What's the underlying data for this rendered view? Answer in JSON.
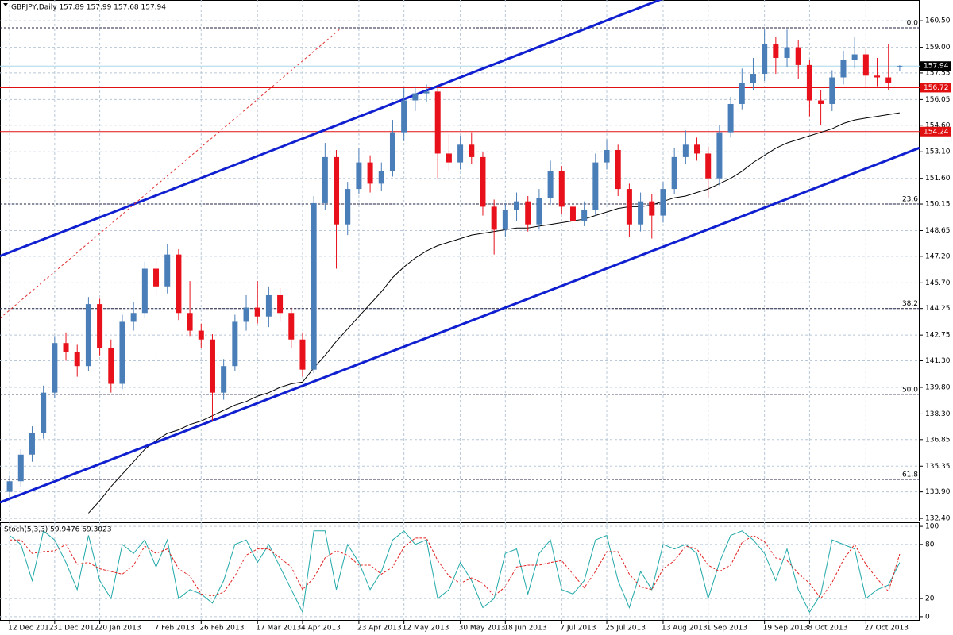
{
  "chart_data": {
    "type": "candlestick",
    "title": "GBPJPY,Daily  157.89 157.99 157.68 157.94",
    "categories": [
      "12 Dec 2012",
      null,
      null,
      null,
      "31 Dec 2012",
      null,
      null,
      null,
      "20 Jan 2013",
      null,
      null,
      null,
      null,
      "7 Feb 2013",
      null,
      null,
      null,
      "26 Feb 2013",
      null,
      null,
      null,
      null,
      "17 Mar 2013",
      null,
      null,
      null,
      "4 Apr 2013",
      null,
      null,
      null,
      null,
      "23 Apr 2013",
      null,
      null,
      null,
      "12 May 2013",
      null,
      null,
      null,
      null,
      "30 May 2013",
      null,
      null,
      null,
      "18 Jun 2013",
      null,
      null,
      null,
      null,
      "7 Jul 2013",
      null,
      null,
      null,
      "25 Jul 2013",
      null,
      null,
      null,
      null,
      "13 Aug 2013",
      null,
      null,
      null,
      "1 Sep 2013",
      null,
      null,
      null,
      null,
      "19 Sep 2013",
      null,
      null,
      null,
      "8 Oct 2013",
      null,
      null,
      null,
      null,
      "27 Oct 2013",
      null,
      null,
      null
    ],
    "candles": [
      [
        133.9,
        134.8,
        133.5,
        134.5
      ],
      [
        134.5,
        136.3,
        134.2,
        136.0
      ],
      [
        136.0,
        137.6,
        135.6,
        137.2
      ],
      [
        137.2,
        139.9,
        136.9,
        139.5
      ],
      [
        139.5,
        142.7,
        139.2,
        142.3
      ],
      [
        142.3,
        142.9,
        141.3,
        141.8
      ],
      [
        141.8,
        142.2,
        140.4,
        141.0
      ],
      [
        141.0,
        144.9,
        140.7,
        144.5
      ],
      [
        144.5,
        144.8,
        141.6,
        142.0
      ],
      [
        142.0,
        142.5,
        139.5,
        140.0
      ],
      [
        140.0,
        143.9,
        139.7,
        143.5
      ],
      [
        143.5,
        144.6,
        143.0,
        144.0
      ],
      [
        144.0,
        146.9,
        143.7,
        146.5
      ],
      [
        146.5,
        147.2,
        145.0,
        145.5
      ],
      [
        145.5,
        147.9,
        145.1,
        147.3
      ],
      [
        147.3,
        147.6,
        143.6,
        144.0
      ],
      [
        144.0,
        145.8,
        142.7,
        143.0
      ],
      [
        143.0,
        143.4,
        142.0,
        142.5
      ],
      [
        142.5,
        142.8,
        137.9,
        139.5
      ],
      [
        139.5,
        141.4,
        139.1,
        141.0
      ],
      [
        141.0,
        143.9,
        140.7,
        143.5
      ],
      [
        143.5,
        145.0,
        143.0,
        144.3
      ],
      [
        144.3,
        145.8,
        143.4,
        143.8
      ],
      [
        143.8,
        145.5,
        143.2,
        145.0
      ],
      [
        145.0,
        145.4,
        143.5,
        144.0
      ],
      [
        144.0,
        144.3,
        142.0,
        142.5
      ],
      [
        142.5,
        142.9,
        140.4,
        140.8
      ],
      [
        140.8,
        150.6,
        140.6,
        150.2
      ],
      [
        150.2,
        153.6,
        149.8,
        152.8
      ],
      [
        152.8,
        153.2,
        146.5,
        149.0
      ],
      [
        149.0,
        151.4,
        148.4,
        151.0
      ],
      [
        151.0,
        153.3,
        150.7,
        152.5
      ],
      [
        152.5,
        152.9,
        150.8,
        151.3
      ],
      [
        151.3,
        152.5,
        150.9,
        152.0
      ],
      [
        152.0,
        154.9,
        151.7,
        154.2
      ],
      [
        154.2,
        156.7,
        153.7,
        156.0
      ],
      [
        156.0,
        156.8,
        155.4,
        156.4
      ],
      [
        156.4,
        156.9,
        155.9,
        156.5
      ],
      [
        156.5,
        156.8,
        151.6,
        153.0
      ],
      [
        153.0,
        154.1,
        152.0,
        152.5
      ],
      [
        152.5,
        154.0,
        152.1,
        153.5
      ],
      [
        153.5,
        154.2,
        152.4,
        152.8
      ],
      [
        152.8,
        153.1,
        149.5,
        150.0
      ],
      [
        150.0,
        150.4,
        147.3,
        148.7
      ],
      [
        148.7,
        150.2,
        148.3,
        149.8
      ],
      [
        149.8,
        150.8,
        149.2,
        150.3
      ],
      [
        150.3,
        150.6,
        148.6,
        149.0
      ],
      [
        149.0,
        151.0,
        148.7,
        150.5
      ],
      [
        150.5,
        152.6,
        150.1,
        152.0
      ],
      [
        152.0,
        152.3,
        149.6,
        150.0
      ],
      [
        150.0,
        150.4,
        148.7,
        149.2
      ],
      [
        149.2,
        150.3,
        148.9,
        149.8
      ],
      [
        149.8,
        153.0,
        149.5,
        152.5
      ],
      [
        152.5,
        153.8,
        152.1,
        153.2
      ],
      [
        153.2,
        153.5,
        150.6,
        151.0
      ],
      [
        151.0,
        151.3,
        148.3,
        149.0
      ],
      [
        149.0,
        150.8,
        148.6,
        150.3
      ],
      [
        150.3,
        150.7,
        148.2,
        149.5
      ],
      [
        149.5,
        151.4,
        149.1,
        151.0
      ],
      [
        151.0,
        153.3,
        150.7,
        152.8
      ],
      [
        152.8,
        154.3,
        152.4,
        153.5
      ],
      [
        153.5,
        153.9,
        152.6,
        153.0
      ],
      [
        153.0,
        153.4,
        150.5,
        151.6
      ],
      [
        151.6,
        154.6,
        151.2,
        154.2
      ],
      [
        154.2,
        156.2,
        153.9,
        155.8
      ],
      [
        155.8,
        157.8,
        155.5,
        157.0
      ],
      [
        157.0,
        158.4,
        156.6,
        157.5
      ],
      [
        157.5,
        160.0,
        157.1,
        159.2
      ],
      [
        159.2,
        159.6,
        157.5,
        158.4
      ],
      [
        158.4,
        160.0,
        157.9,
        159.0
      ],
      [
        159.0,
        159.4,
        157.2,
        158.0
      ],
      [
        158.0,
        158.3,
        155.1,
        156.0
      ],
      [
        156.0,
        156.6,
        154.6,
        155.8
      ],
      [
        155.8,
        157.7,
        155.4,
        157.3
      ],
      [
        157.3,
        158.8,
        156.9,
        158.3
      ],
      [
        158.3,
        159.6,
        157.8,
        158.6
      ],
      [
        158.6,
        158.9,
        156.7,
        157.4
      ],
      [
        157.4,
        158.4,
        156.8,
        157.3
      ],
      [
        157.3,
        159.2,
        156.6,
        157.0
      ],
      [
        157.89,
        157.99,
        157.68,
        157.94
      ]
    ],
    "up_color": "#4a7eb8",
    "down_color": "#e8111b",
    "ylim": [
      132.27,
      161.67
    ],
    "yticks": [
      {
        "value": 160.5,
        "label": "160.50"
      },
      {
        "value": 159,
        "label": "159.00"
      },
      {
        "value": 157.55,
        "label": "157.55"
      },
      {
        "value": 156.05,
        "label": "156.05"
      },
      {
        "value": 154.6,
        "label": "154.60"
      },
      {
        "value": 153.1,
        "label": "153.10"
      },
      {
        "value": 151.6,
        "label": "151.60"
      },
      {
        "value": 150.15,
        "label": "150.15"
      },
      {
        "value": 148.65,
        "label": "148.65"
      },
      {
        "value": 147.2,
        "label": "147.20"
      },
      {
        "value": 145.7,
        "label": "145.70"
      },
      {
        "value": 144.25,
        "label": "144.25"
      },
      {
        "value": 142.75,
        "label": "142.75"
      },
      {
        "value": 141.3,
        "label": "141.30"
      },
      {
        "value": 139.8,
        "label": "139.80"
      },
      {
        "value": 138.3,
        "label": "138.30"
      },
      {
        "value": 136.85,
        "label": "136.85"
      },
      {
        "value": 135.35,
        "label": "135.35"
      },
      {
        "value": 133.9,
        "label": "133.90"
      },
      {
        "value": 132.4,
        "label": "132.40"
      }
    ],
    "grid": true,
    "moving_average": {
      "color": "#000000",
      "values": [
        null,
        null,
        null,
        null,
        null,
        null,
        null,
        132.7,
        133.4,
        134.2,
        134.9,
        135.6,
        136.3,
        136.8,
        137.2,
        137.4,
        137.7,
        137.9,
        138.2,
        138.5,
        138.8,
        139.0,
        139.3,
        139.5,
        139.8,
        140.0,
        140.1,
        140.9,
        141.6,
        142.4,
        143.1,
        143.8,
        144.5,
        145.2,
        146.0,
        146.6,
        147.1,
        147.5,
        147.8,
        148.0,
        148.2,
        148.4,
        148.5,
        148.6,
        148.7,
        148.8,
        148.8,
        148.9,
        149.0,
        149.1,
        149.2,
        149.3,
        149.5,
        149.7,
        149.9,
        150.0,
        150.0,
        150.1,
        150.3,
        150.5,
        150.6,
        150.8,
        151.0,
        151.3,
        151.6,
        152.0,
        152.5,
        152.9,
        153.3,
        153.6,
        153.8,
        154.0,
        154.2,
        154.4,
        154.7,
        154.9,
        155.0,
        155.1,
        155.2,
        155.3
      ]
    },
    "trendlines": [
      {
        "color": "#1020d0",
        "dashed": false,
        "x": [
          -0.85,
          59.0
        ],
        "y": [
          147.21,
          162.0
        ]
      },
      {
        "color": "#1020d0",
        "dashed": false,
        "x": [
          -0.85,
          80.75
        ],
        "y": [
          133.3,
          153.32
        ]
      },
      {
        "color": "#e03030",
        "dashed": true,
        "x": [
          -0.85,
          29.45
        ],
        "y": [
          143.7,
          160.1
        ]
      }
    ],
    "levels": [
      {
        "value": 156.72,
        "color": "#e01010"
      },
      {
        "value": 154.24,
        "color": "#e01010"
      }
    ],
    "last_price": {
      "value": 157.94,
      "color": "#a8d8e8"
    },
    "fib_levels": [
      {
        "value": 160.1,
        "label": "0.0"
      },
      {
        "value": 150.15,
        "label": "23.6"
      },
      {
        "value": 144.25,
        "label": "38.2"
      },
      {
        "value": 139.4,
        "label": "50.0"
      },
      {
        "value": 134.6,
        "label": "61.8"
      }
    ],
    "stochastic": {
      "title": "Stoch(5,3,3) 59.9476 69.3023",
      "ylim": [
        -4.5,
        104.5
      ],
      "yticks": [
        0,
        20,
        80,
        100
      ],
      "series": [
        {
          "color": "#20a8a8",
          "dashed": false,
          "values": [
            90,
            80,
            40,
            95,
            85,
            60,
            30,
            90,
            40,
            20,
            80,
            70,
            85,
            55,
            85,
            20,
            30,
            25,
            15,
            40,
            80,
            85,
            60,
            80,
            55,
            30,
            5,
            95,
            95,
            30,
            80,
            60,
            30,
            50,
            85,
            95,
            80,
            85,
            20,
            30,
            60,
            40,
            10,
            20,
            70,
            75,
            25,
            70,
            85,
            30,
            25,
            40,
            85,
            90,
            40,
            10,
            50,
            30,
            80,
            75,
            80,
            70,
            20,
            60,
            90,
            95,
            85,
            70,
            40,
            75,
            30,
            5,
            25,
            85,
            80,
            75,
            20,
            30,
            35,
            59.9476
          ]
        },
        {
          "color": "#e02020",
          "dashed": true,
          "values": [
            85,
            85,
            70,
            72,
            73,
            80,
            58,
            60,
            53,
            50,
            47,
            57,
            78,
            70,
            75,
            53,
            45,
            25,
            23,
            27,
            45,
            68,
            75,
            75,
            65,
            55,
            30,
            43,
            65,
            73,
            68,
            57,
            57,
            47,
            55,
            77,
            87,
            87,
            62,
            45,
            37,
            43,
            37,
            23,
            33,
            55,
            57,
            57,
            60,
            62,
            47,
            32,
            50,
            72,
            72,
            47,
            33,
            30,
            53,
            62,
            78,
            75,
            57,
            50,
            57,
            82,
            90,
            83,
            65,
            62,
            48,
            37,
            20,
            38,
            63,
            80,
            58,
            42,
            28,
            69.3023
          ]
        }
      ]
    }
  }
}
